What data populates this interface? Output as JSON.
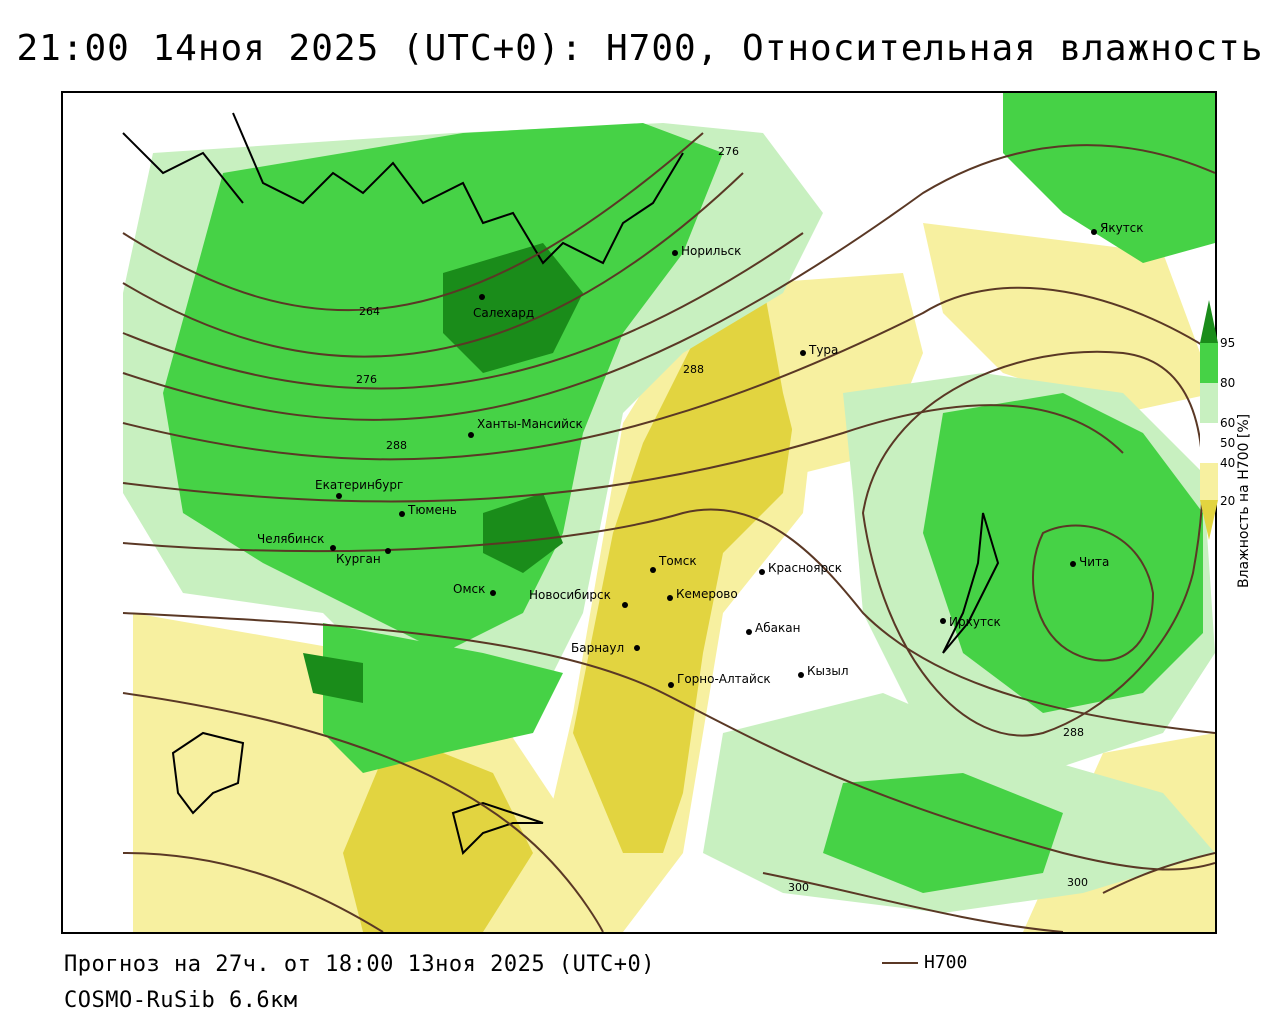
{
  "title": "21:00 14ноя 2025 (UTC+0): H700, Относительная влажность",
  "footer": {
    "forecast": "Прогноз на 27ч. от 18:00 13ноя 2025 (UTC+0)",
    "model": "COSMO-RuSib 6.6км"
  },
  "legend": {
    "label": "H700",
    "color": "#5a3825"
  },
  "colorbar": {
    "title": "Влажность на H700 [%]",
    "ticks": [
      "95",
      "80",
      "60",
      "50",
      "40",
      "20"
    ],
    "colors": {
      "very_dry": "#e2d440",
      "dry": "#f7f0a0",
      "neutral": "#ffffff",
      "moist": "#c8f0c0",
      "wet": "#46d246",
      "very_wet": "#1a8c1a"
    }
  },
  "contour_labels": [
    "276",
    "264",
    "276",
    "288",
    "288",
    "288",
    "300",
    "300"
  ],
  "cities": [
    {
      "name": "Якутск"
    },
    {
      "name": "Норильск"
    },
    {
      "name": "Салехард"
    },
    {
      "name": "Тура"
    },
    {
      "name": "Ханты-Мансийск"
    },
    {
      "name": "Екатеринбург"
    },
    {
      "name": "Тюмень"
    },
    {
      "name": "Челябинск"
    },
    {
      "name": "Курган"
    },
    {
      "name": "Омск"
    },
    {
      "name": "Новосибирск"
    },
    {
      "name": "Томск"
    },
    {
      "name": "Кемерово"
    },
    {
      "name": "Красноярск"
    },
    {
      "name": "Абакан"
    },
    {
      "name": "Барнаул"
    },
    {
      "name": "Горно-Алтайск"
    },
    {
      "name": "Кызыл"
    },
    {
      "name": "Иркутск"
    },
    {
      "name": "Чита"
    }
  ]
}
